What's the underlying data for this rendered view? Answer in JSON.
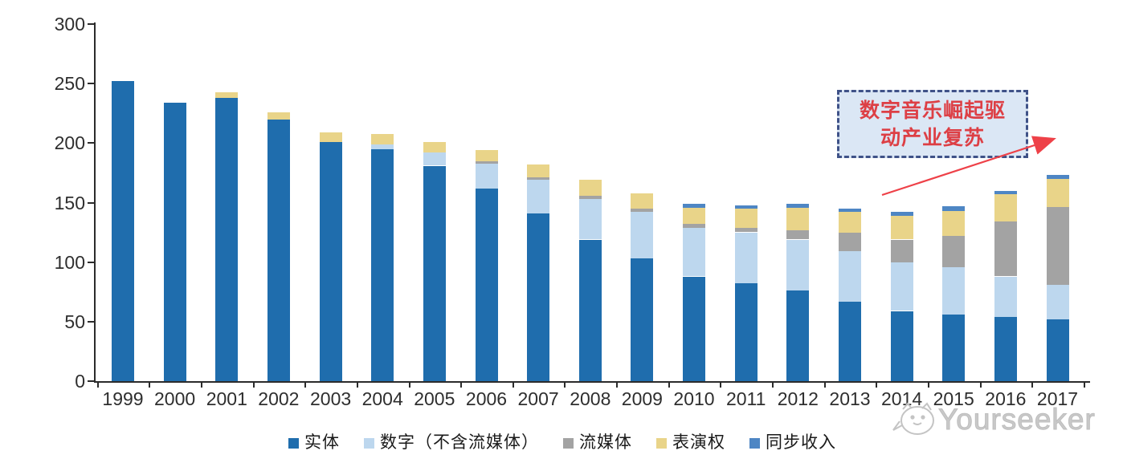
{
  "chart_data": {
    "type": "bar",
    "stacked": true,
    "title": "",
    "xlabel": "",
    "ylabel": "",
    "ylim": [
      0,
      300
    ],
    "yticks": [
      0,
      50,
      100,
      150,
      200,
      250,
      300
    ],
    "grid": false,
    "legend_position": "bottom",
    "categories": [
      "1999",
      "2000",
      "2001",
      "2002",
      "2003",
      "2004",
      "2005",
      "2006",
      "2007",
      "2008",
      "2009",
      "2010",
      "2011",
      "2012",
      "2013",
      "2014",
      "2015",
      "2016",
      "2017"
    ],
    "series": [
      {
        "key": "physical",
        "name": "实体",
        "color": "#1f6dad",
        "values": [
          252,
          234,
          238,
          220,
          201,
          195,
          181,
          162,
          141,
          119,
          103,
          88,
          82,
          76,
          67,
          59,
          56,
          54,
          52
        ]
      },
      {
        "key": "digital-excl-streaming",
        "name": "数字（不含流媒体）",
        "color": "#bdd7ee",
        "values": [
          0,
          0,
          0,
          0,
          0,
          4,
          11,
          21,
          28,
          34,
          39,
          41,
          43,
          43,
          42,
          41,
          40,
          34,
          29
        ]
      },
      {
        "key": "streaming",
        "name": "流媒体",
        "color": "#a3a3a3",
        "values": [
          0,
          0,
          0,
          0,
          0,
          0,
          0,
          2,
          2,
          3,
          3,
          3,
          4,
          8,
          16,
          19,
          26,
          46,
          65
        ]
      },
      {
        "key": "performance-rights",
        "name": "表演权",
        "color": "#e9d489",
        "values": [
          0,
          0,
          5,
          6,
          8,
          9,
          9,
          9,
          11,
          13,
          13,
          14,
          16,
          19,
          17,
          20,
          21,
          23,
          24
        ]
      },
      {
        "key": "sync-revenue",
        "name": "同步收入",
        "color": "#4e86c4",
        "values": [
          0,
          0,
          0,
          0,
          0,
          0,
          0,
          0,
          0,
          0,
          0,
          3,
          3,
          3,
          3,
          3,
          4,
          3,
          3
        ]
      }
    ]
  },
  "annotation": {
    "lines": [
      "数字音乐崛起驱",
      "动产业复苏"
    ],
    "text_color": "#dd3f45",
    "border_color": "#3f5288",
    "fill_color": "#dbe7f5",
    "arrow_color": "#ee4148"
  },
  "watermark": {
    "text": "Yourseeker",
    "icon": "cat-face-icon",
    "color": "#c9c9c9"
  }
}
